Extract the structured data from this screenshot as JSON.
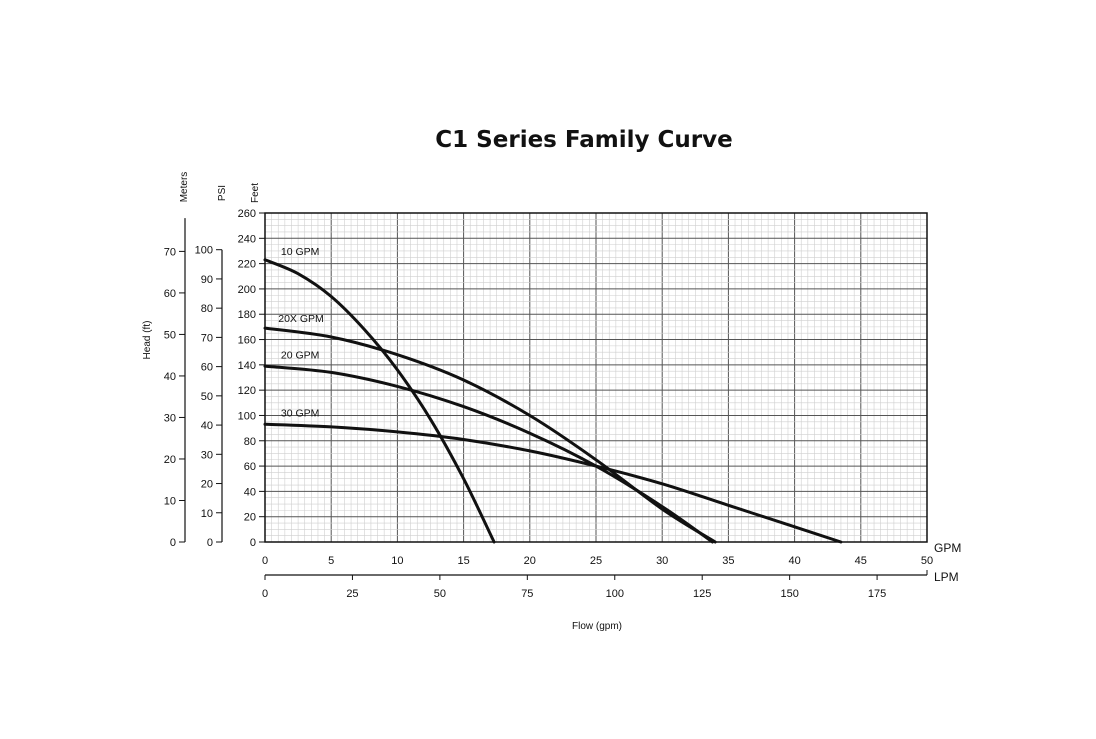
{
  "chart_data": {
    "type": "line",
    "title": "C1 Series Family Curve",
    "xlabel": "Flow (gpm)",
    "ylabel": "Head (ft)",
    "grid": true,
    "x_primary": {
      "unit": "GPM",
      "min": 0,
      "max": 50,
      "ticks": [
        0,
        5,
        10,
        15,
        20,
        25,
        30,
        35,
        40,
        45,
        50
      ]
    },
    "x_secondary": {
      "unit": "LPM",
      "ticks": [
        0,
        25,
        50,
        75,
        100,
        125,
        150,
        175
      ]
    },
    "y_feet": {
      "unit": "Feet",
      "min": 0,
      "max": 260,
      "ticks": [
        0,
        20,
        40,
        60,
        80,
        100,
        120,
        140,
        160,
        180,
        200,
        220,
        240,
        260
      ]
    },
    "y_psi": {
      "unit": "PSI",
      "ticks": [
        0,
        10,
        20,
        30,
        40,
        50,
        60,
        70,
        80,
        90,
        100
      ]
    },
    "y_meters": {
      "unit": "Meters",
      "ticks": [
        0,
        10,
        20,
        30,
        40,
        50,
        60,
        70
      ]
    },
    "series": [
      {
        "name": "10 GPM",
        "x": [
          0,
          2.5,
          5,
          7.5,
          10,
          12.5,
          15,
          17.3
        ],
        "y": [
          223,
          212,
          194,
          168,
          136,
          97,
          50,
          0
        ]
      },
      {
        "name": "20X GPM",
        "x": [
          0,
          5,
          10,
          15,
          20,
          25,
          30,
          34
        ],
        "y": [
          169,
          162,
          148,
          128,
          100,
          65,
          26,
          0
        ]
      },
      {
        "name": "20 GPM",
        "x": [
          0,
          5,
          10,
          15,
          20,
          25,
          30,
          33.8
        ],
        "y": [
          139,
          134,
          123,
          107,
          86,
          60,
          28,
          0
        ]
      },
      {
        "name": "30 GPM",
        "x": [
          0,
          5,
          10,
          15,
          20,
          25,
          30,
          35,
          40,
          43.5
        ],
        "y": [
          93,
          91,
          87,
          81,
          72,
          60,
          46,
          29,
          12,
          0
        ]
      }
    ],
    "curve_labels": [
      {
        "text": "10 GPM",
        "x": 1.2,
        "y": 227
      },
      {
        "text": "20X GPM",
        "x": 1,
        "y": 174
      },
      {
        "text": "20 GPM",
        "x": 1.2,
        "y": 145
      },
      {
        "text": "30 GPM",
        "x": 1.2,
        "y": 99
      }
    ]
  }
}
